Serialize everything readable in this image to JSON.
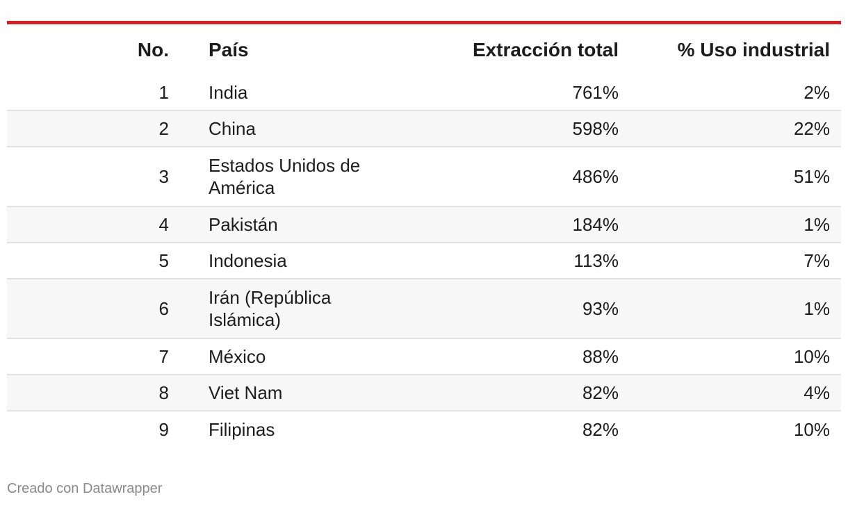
{
  "chart_data": {
    "type": "table",
    "columns": [
      "No.",
      "País",
      "Extracción total",
      "% Uso industrial"
    ],
    "rows": [
      {
        "no": "1",
        "pais": "India",
        "extraccion": "761%",
        "uso": "2%"
      },
      {
        "no": "2",
        "pais": "China",
        "extraccion": "598%",
        "uso": "22%"
      },
      {
        "no": "3",
        "pais": "Estados Unidos de América",
        "extraccion": "486%",
        "uso": "51%"
      },
      {
        "no": "4",
        "pais": "Pakistán",
        "extraccion": "184%",
        "uso": "1%"
      },
      {
        "no": "5",
        "pais": "Indonesia",
        "extraccion": "113%",
        "uso": "7%"
      },
      {
        "no": "6",
        "pais": "Irán (República Islámica)",
        "extraccion": "93%",
        "uso": "1%"
      },
      {
        "no": "7",
        "pais": "México",
        "extraccion": "88%",
        "uso": "10%"
      },
      {
        "no": "8",
        "pais": "Viet Nam",
        "extraccion": "82%",
        "uso": "4%"
      },
      {
        "no": "9",
        "pais": "Filipinas",
        "extraccion": "82%",
        "uso": "10%"
      }
    ]
  },
  "footer": {
    "credit": "Creado con Datawrapper"
  },
  "colors": {
    "accent": "#d1202a",
    "row_alt": "#f7f7f7",
    "divider": "#e2e2e2",
    "footer_text": "#8a8a8a"
  }
}
